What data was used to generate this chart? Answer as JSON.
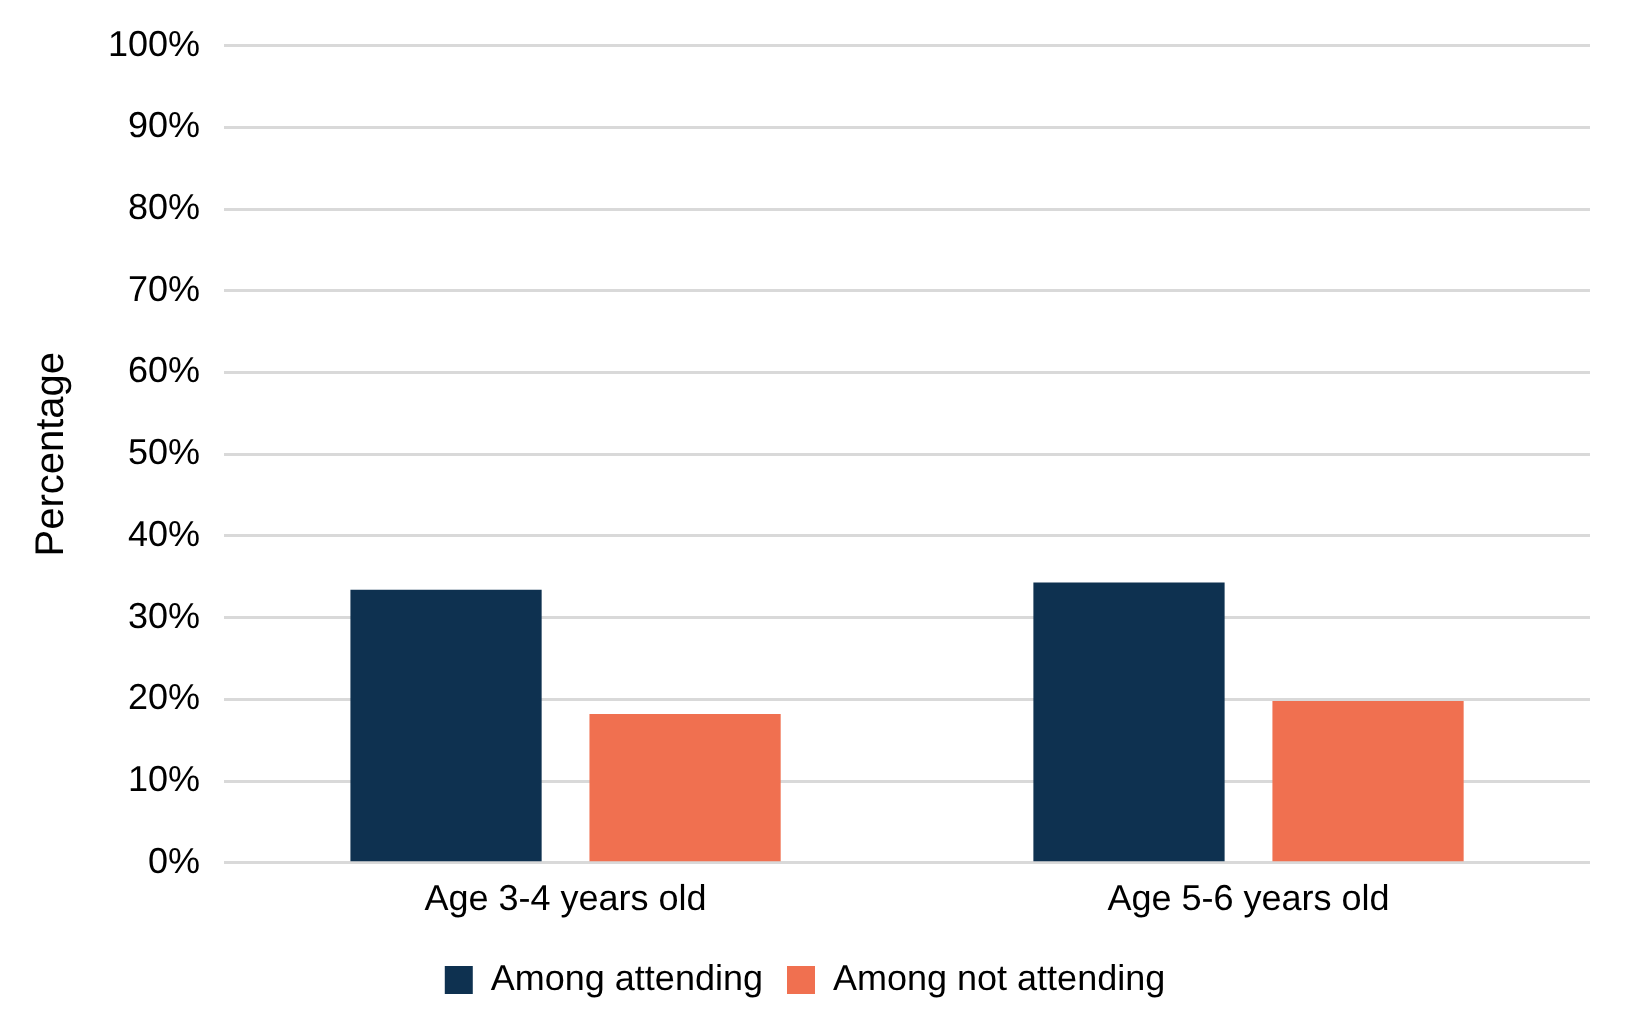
{
  "chart_data": {
    "type": "bar",
    "ylabel": "Percentage",
    "categories": [
      "Age 3-4 years old",
      "Age 5-6 years old"
    ],
    "series": [
      {
        "name": "Among attending",
        "color": "#0e3150",
        "values": [
          33.4,
          34.3
        ]
      },
      {
        "name": "Among not attending",
        "color": "#f07050",
        "values": [
          18.2,
          19.8
        ]
      }
    ],
    "ylim": [
      0,
      100
    ],
    "yticks": [
      {
        "value": 0,
        "label": "0%"
      },
      {
        "value": 10,
        "label": "10%"
      },
      {
        "value": 20,
        "label": "20%"
      },
      {
        "value": 30,
        "label": "30%"
      },
      {
        "value": 40,
        "label": "40%"
      },
      {
        "value": 50,
        "label": "50%"
      },
      {
        "value": 60,
        "label": "60%"
      },
      {
        "value": 70,
        "label": "70%"
      },
      {
        "value": 80,
        "label": "80%"
      },
      {
        "value": 90,
        "label": "90%"
      },
      {
        "value": 100,
        "label": "100%"
      }
    ],
    "grid": "y",
    "legend": "bottom"
  }
}
